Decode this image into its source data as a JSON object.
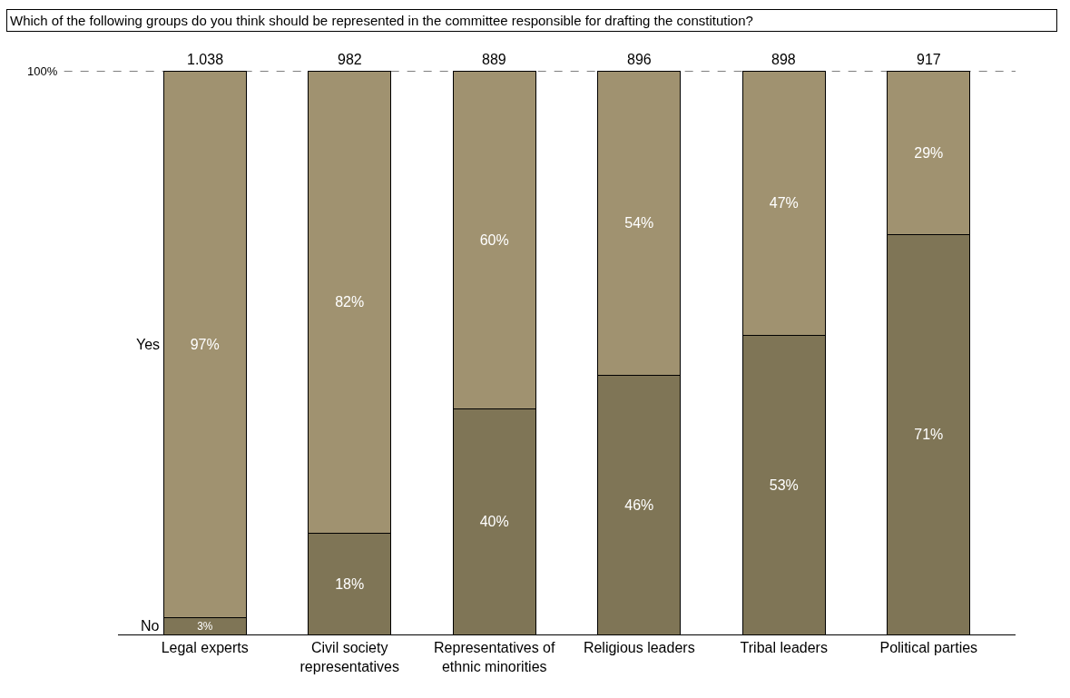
{
  "chart_data": {
    "type": "bar",
    "stacked": true,
    "title": "Which of the following groups do you think should be represented in the committee responsible for drafting the constitution?",
    "categories": [
      "Legal experts",
      "Civil society representatives",
      "Representatives of ethnic minorities",
      "Religious leaders",
      "Tribal leaders",
      "Political parties"
    ],
    "series": [
      {
        "name": "No",
        "color": "#7f7556",
        "values": [
          3,
          18,
          40,
          46,
          53,
          71
        ],
        "value_labels": [
          "3%",
          "18%",
          "40%",
          "46%",
          "53%",
          "71%"
        ]
      },
      {
        "name": "Yes",
        "color": "#a09270",
        "values": [
          97,
          82,
          60,
          54,
          47,
          29
        ],
        "value_labels": [
          "97%",
          "82%",
          "60%",
          "54%",
          "47%",
          "29%"
        ]
      }
    ],
    "ref_lines": [
      {
        "axis": "y",
        "value": 100,
        "label": "100%",
        "color": "#000000",
        "line_style": "dashed"
      }
    ],
    "annotations": [
      {
        "text": "1.038",
        "x": "Legal experts",
        "y": 100
      },
      {
        "text": "982",
        "x": "Civil society representatives",
        "y": 100
      },
      {
        "text": "889",
        "x": "Representatives of ethnic minorities",
        "y": 100
      },
      {
        "text": "896",
        "x": "Religious leaders",
        "y": 100
      },
      {
        "text": "898",
        "x": "Tribal leaders",
        "y": 100
      },
      {
        "text": "917",
        "x": "Political parties",
        "y": 100
      }
    ],
    "ylim": [
      0,
      100
    ],
    "legend": false
  }
}
